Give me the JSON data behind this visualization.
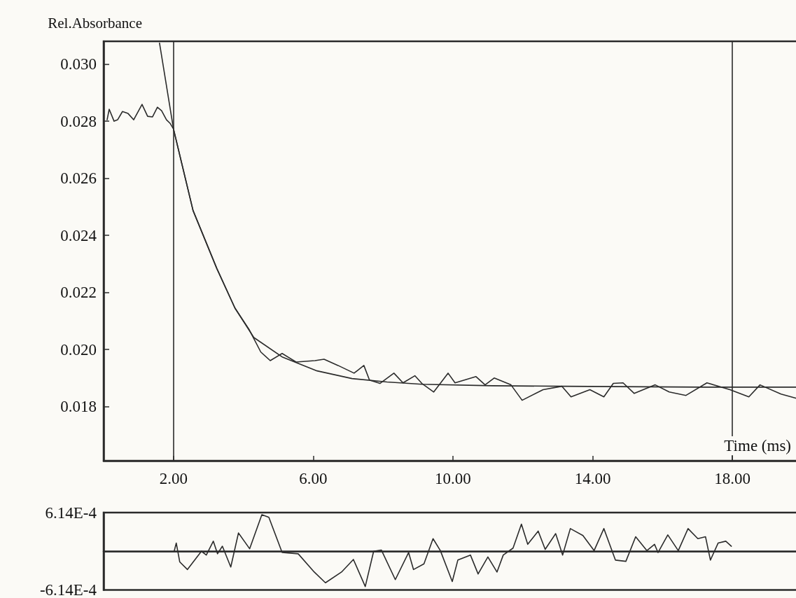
{
  "chart_data": [
    {
      "type": "line",
      "ylabel": "Rel.Absorbance",
      "xlabel": "Time (ms)",
      "xlim": [
        0,
        19.9
      ],
      "ylim": [
        0.0161,
        0.0308
      ],
      "xticks": [
        {
          "value": 2,
          "label": "2.00"
        },
        {
          "value": 6,
          "label": "6.00"
        },
        {
          "value": 10,
          "label": "10.00"
        },
        {
          "value": 14,
          "label": "14.00"
        },
        {
          "value": 18,
          "label": "18.00"
        }
      ],
      "yticks": [
        {
          "value": 0.018,
          "label": "0.018"
        },
        {
          "value": 0.02,
          "label": "0.020"
        },
        {
          "value": 0.022,
          "label": "0.022"
        },
        {
          "value": 0.024,
          "label": "0.024"
        },
        {
          "value": 0.026,
          "label": "0.026"
        },
        {
          "value": 0.028,
          "label": "0.028"
        },
        {
          "value": 0.03,
          "label": "0.030"
        }
      ],
      "grid": false,
      "marker": "none",
      "line_style": "solid",
      "ref_lines": [
        {
          "axis": "x",
          "value": 2,
          "color": "#2b2b2b"
        },
        {
          "axis": "x",
          "value": 18,
          "color": "#2b2b2b"
        }
      ],
      "series": [
        {
          "color": "#2b2b2b",
          "x": [
            0.1,
            0.16,
            0.3,
            0.4,
            0.54,
            0.7,
            0.86,
            1.1,
            1.26,
            1.4,
            1.54,
            1.66,
            1.8,
            1.9,
            2.0,
            2.56,
            3.24,
            3.76,
            4.16,
            4.5,
            4.77,
            5.11,
            5.51,
            6.05,
            6.31,
            6.71,
            7.17,
            7.45,
            7.61,
            7.91,
            8.31,
            8.57,
            8.91,
            9.11,
            9.45,
            9.86,
            10.06,
            10.66,
            10.92,
            11.18,
            11.66,
            11.98,
            12.58,
            13.12,
            13.38,
            13.92,
            14.32,
            14.59,
            14.87,
            15.19,
            15.79,
            16.19,
            16.67,
            17.27,
            17.93,
            18.47,
            18.79,
            19.39,
            19.88
          ],
          "values": [
            0.02805,
            0.02842,
            0.028,
            0.02805,
            0.02834,
            0.02827,
            0.02805,
            0.02859,
            0.02817,
            0.02815,
            0.02849,
            0.02837,
            0.02805,
            0.02793,
            0.02773,
            0.02487,
            0.02284,
            0.02145,
            0.02071,
            0.01991,
            0.01961,
            0.01986,
            0.01956,
            0.01961,
            0.01966,
            0.01944,
            0.01917,
            0.01944,
            0.01893,
            0.01881,
            0.01917,
            0.01883,
            0.01908,
            0.01881,
            0.01851,
            0.01917,
            0.01883,
            0.01905,
            0.01876,
            0.019,
            0.01876,
            0.01822,
            0.01859,
            0.01871,
            0.01834,
            0.01859,
            0.01834,
            0.01881,
            0.01883,
            0.01846,
            0.01876,
            0.01851,
            0.01839,
            0.01883,
            0.01859,
            0.01834,
            0.01876,
            0.01844,
            0.01827
          ]
        },
        {
          "color": "#2b2b2b",
          "x": [
            1.6,
            2.0,
            2.56,
            3.24,
            3.76,
            4.3,
            5.11,
            6.11,
            7.11,
            8.11,
            9.11,
            11.12,
            13.12,
            17.13,
            19.88
          ],
          "values": [
            0.03074,
            0.02773,
            0.02487,
            0.02284,
            0.02145,
            0.02042,
            0.01974,
            0.01925,
            0.01898,
            0.01886,
            0.01878,
            0.01873,
            0.01871,
            0.01868,
            0.01868
          ]
        }
      ]
    },
    {
      "type": "line",
      "xlim": [
        0,
        19.9
      ],
      "ylim": [
        -0.000614,
        0.000614
      ],
      "yticks": [
        {
          "value": -0.000614,
          "label": "-6.14E-4"
        },
        {
          "value": 0.000614,
          "label": "6.14E-4"
        }
      ],
      "tick_labels": "y",
      "grid": false,
      "marker": "none",
      "line_style": "solid",
      "ref_lines": [
        {
          "axis": "y",
          "value": 0,
          "color": "#2b2b2b"
        }
      ],
      "series": [
        {
          "color": "#2b2b2b",
          "x": [
            2.02,
            2.08,
            2.18,
            2.4,
            2.8,
            2.94,
            3.14,
            3.26,
            3.4,
            3.64,
            3.86,
            4.18,
            4.53,
            4.73,
            5.11,
            5.57,
            6.03,
            6.35,
            6.81,
            7.15,
            7.49,
            7.73,
            7.95,
            8.35,
            8.73,
            8.87,
            9.17,
            9.43,
            9.64,
            9.98,
            10.14,
            10.5,
            10.72,
            11.0,
            11.26,
            11.44,
            11.72,
            11.96,
            12.14,
            12.44,
            12.64,
            12.94,
            13.14,
            13.36,
            13.72,
            14.04,
            14.32,
            14.65,
            14.95,
            15.23,
            15.55,
            15.77,
            15.87,
            16.15,
            16.45,
            16.73,
            17.01,
            17.23,
            17.37,
            17.59,
            17.81,
            17.97
          ],
          "values": [
            0,
            0.00013,
            -0.00017,
            -0.00029,
            0,
            -6e-05,
            0.00016,
            -4e-05,
            8e-05,
            -0.00025,
            0.00029,
            4e-05,
            0.00058,
            0.00054,
            -2e-05,
            -4e-05,
            -0.00033,
            -0.0005,
            -0.00033,
            -0.00013,
            -0.00056,
            0,
            2e-05,
            -0.00045,
            -2e-05,
            -0.00029,
            -0.0002,
            0.0002,
            1e-05,
            -0.00048,
            -0.00014,
            -6e-05,
            -0.00036,
            -9e-05,
            -0.00033,
            -6e-05,
            5e-05,
            0.00043,
            0.00011,
            0.00032,
            3e-05,
            0.00028,
            -6e-05,
            0.00036,
            0.00025,
            1e-05,
            0.00036,
            -0.00014,
            -0.00016,
            0.00023,
            1e-05,
            0.00011,
            -2e-05,
            0.00026,
            1e-05,
            0.00036,
            0.0002,
            0.00023,
            -0.00014,
            0.00013,
            0.00016,
            8e-05
          ]
        }
      ]
    }
  ]
}
